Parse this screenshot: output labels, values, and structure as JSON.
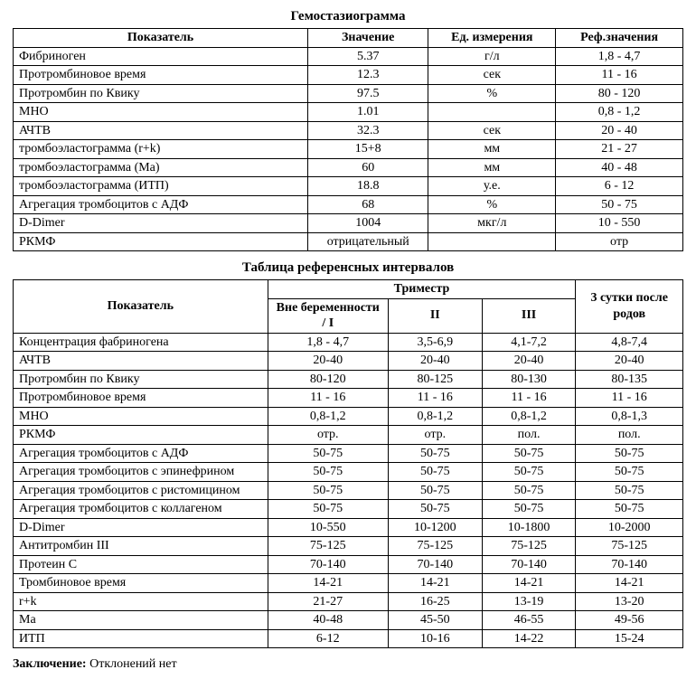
{
  "table1": {
    "title": "Гемостазиограмма",
    "headers": [
      "Показатель",
      "Значение",
      "Ед. измерения",
      "Реф.значения"
    ],
    "rows": [
      [
        "Фибриноген",
        "5.37",
        "г/л",
        "1,8 - 4,7"
      ],
      [
        "Протромбиновое время",
        "12.3",
        "сек",
        "11 - 16"
      ],
      [
        "Протромбин по Квику",
        "97.5",
        "%",
        "80 - 120"
      ],
      [
        "МНО",
        "1.01",
        "",
        "0,8 - 1,2"
      ],
      [
        "АЧТВ",
        "32.3",
        "сек",
        "20 - 40"
      ],
      [
        "тромбоэластограмма (r+k)",
        "15+8",
        "мм",
        "21 - 27"
      ],
      [
        "тромбоэластограмма (Ма)",
        "60",
        "мм",
        "40 - 48"
      ],
      [
        "тромбоэластограмма (ИТП)",
        "18.8",
        "у.е.",
        "6 - 12"
      ],
      [
        "Агрегация тромбоцитов с АДФ",
        "68",
        "%",
        "50 - 75"
      ],
      [
        "D-Dimer",
        "1004",
        "мкг/л",
        "10 - 550"
      ],
      [
        "РКМФ",
        "отрицательный",
        "",
        "отр"
      ]
    ],
    "col_widths": [
      "44%",
      "18%",
      "19%",
      "19%"
    ]
  },
  "table2": {
    "title": "Таблица референсных интервалов",
    "header_row1": {
      "param": "Показатель",
      "trimester": "Триместр",
      "post": "3 сутки после родов"
    },
    "header_row2": [
      "Вне беременности / I",
      "II",
      "III"
    ],
    "rows": [
      [
        "Концентрация фабриногена",
        "1,8 - 4,7",
        "3,5-6,9",
        "4,1-7,2",
        "4,8-7,4"
      ],
      [
        "АЧТВ",
        "20-40",
        "20-40",
        "20-40",
        "20-40"
      ],
      [
        "Протромбин по Квику",
        "80-120",
        "80-125",
        "80-130",
        "80-135"
      ],
      [
        "Протромбиновое время",
        "11 - 16",
        "11 - 16",
        "11 - 16",
        "11 - 16"
      ],
      [
        "МНО",
        "0,8-1,2",
        "0,8-1,2",
        "0,8-1,2",
        "0,8-1,3"
      ],
      [
        "РКМФ",
        "отр.",
        "отр.",
        "пол.",
        "пол."
      ],
      [
        "Агрегация тромбоцитов с АДФ",
        "50-75",
        "50-75",
        "50-75",
        "50-75"
      ],
      [
        "Агрегация тромбоцитов с эпинефрином",
        "50-75",
        "50-75",
        "50-75",
        "50-75"
      ],
      [
        "Агрегация тромбоцитов  с ристомицином",
        "50-75",
        "50-75",
        "50-75",
        "50-75"
      ],
      [
        "Агрегация тромбоцитов с коллагеном",
        "50-75",
        "50-75",
        "50-75",
        "50-75"
      ],
      [
        "D-Dimer",
        "10-550",
        "10-1200",
        "10-1800",
        "10-2000"
      ],
      [
        "Антитромбин III",
        "75-125",
        "75-125",
        "75-125",
        "75-125"
      ],
      [
        "Протеин С",
        "70-140",
        "70-140",
        "70-140",
        "70-140"
      ],
      [
        "Тромбиновое время",
        "14-21",
        "14-21",
        "14-21",
        "14-21"
      ],
      [
        "r+k",
        "21-27",
        "16-25",
        "13-19",
        "13-20"
      ],
      [
        "Ма",
        "40-48",
        "45-50",
        "46-55",
        "49-56"
      ],
      [
        "ИТП",
        "6-12",
        "10-16",
        "14-22",
        "15-24"
      ]
    ],
    "col_widths": [
      "38%",
      "18%",
      "14%",
      "14%",
      "16%"
    ]
  },
  "conclusion": {
    "label": "Заключение:",
    "text": " Отклонений нет"
  },
  "colors": {
    "bg": "#ffffff",
    "text": "#000000",
    "border": "#000000"
  }
}
